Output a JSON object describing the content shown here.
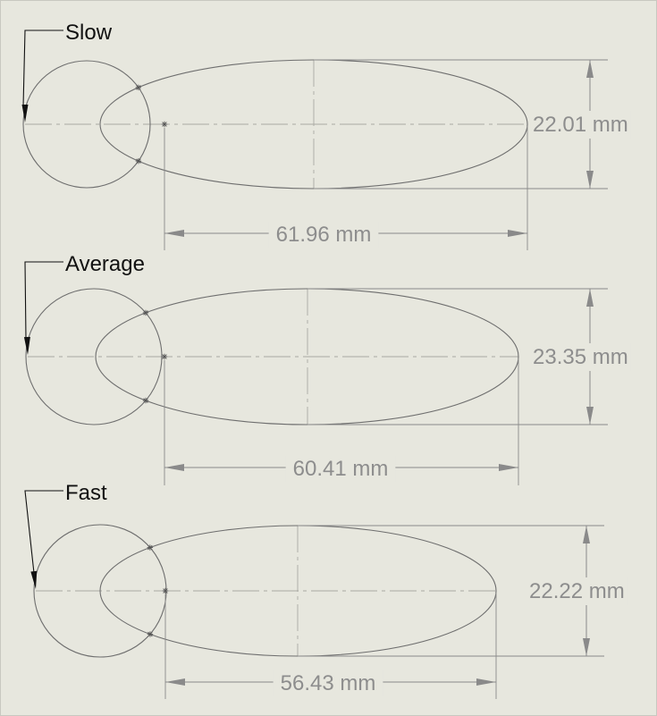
{
  "drawings": [
    {
      "label": "Slow",
      "width_dim": "22.01 mm",
      "length_dim": "61.96 mm"
    },
    {
      "label": "Average",
      "width_dim": "23.35 mm",
      "length_dim": "60.41 mm"
    },
    {
      "label": "Fast",
      "width_dim": "22.22 mm",
      "length_dim": "56.43 mm"
    }
  ]
}
